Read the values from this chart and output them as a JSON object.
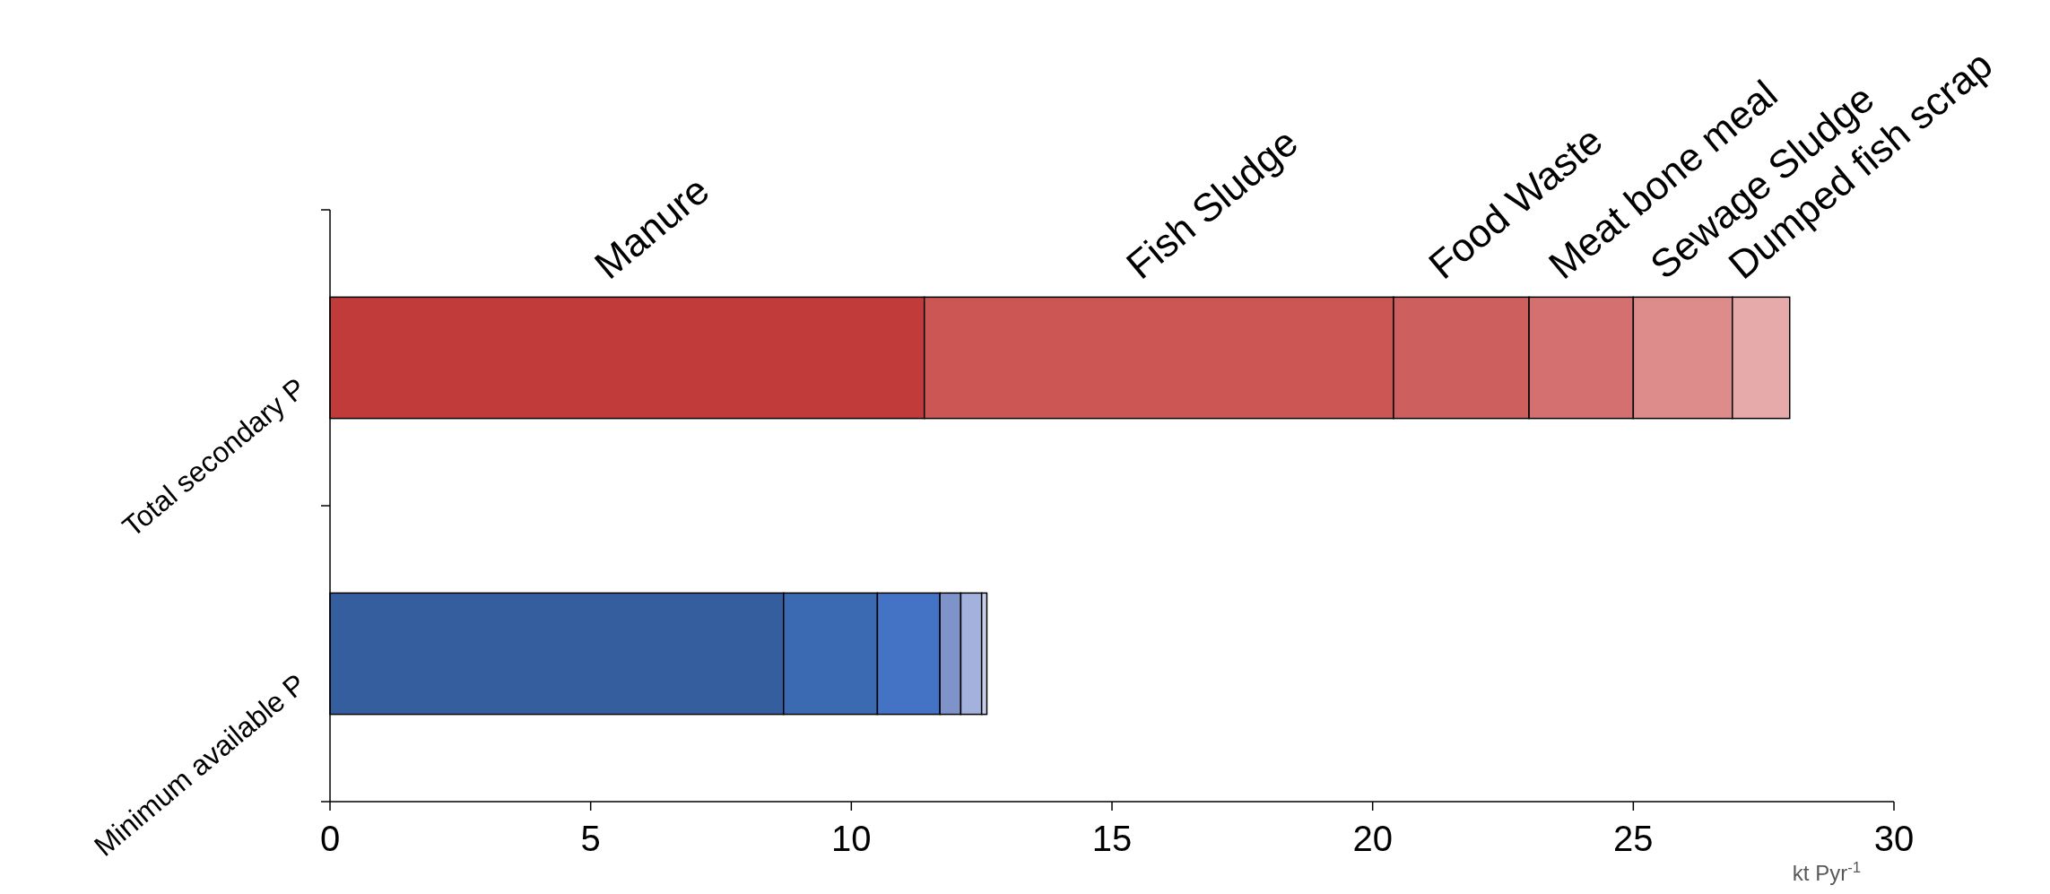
{
  "chart_data": {
    "type": "bar",
    "orientation": "horizontal",
    "stacked": true,
    "xlabel": "kt Pyr$^{-1}$",
    "categories": [
      "Total secondary P",
      "Minimum available P"
    ],
    "xlim": [
      0,
      30
    ],
    "xticks": [
      0,
      5,
      10,
      15,
      20,
      25,
      30
    ],
    "series": [
      {
        "name": "Manure",
        "color": "#c23b3b",
        "values": [
          11.4,
          null
        ]
      },
      {
        "name": "Fish Sludge",
        "color": "#cb5654",
        "values": [
          9.0,
          null
        ]
      },
      {
        "name": "Food Waste",
        "color": "#cd605e",
        "values": [
          2.6,
          null
        ]
      },
      {
        "name": "Meat bone meal",
        "color": "#d47170",
        "values": [
          2.0,
          null
        ]
      },
      {
        "name": "Sewage Sludge",
        "color": "#dd8c8b",
        "values": [
          1.9,
          null
        ]
      },
      {
        "name": "Dumped fish scrap",
        "color": "#e6aaaa",
        "values": [
          1.1,
          null
        ]
      },
      {
        "color": "#355e9f",
        "values": [
          null,
          8.7
        ]
      },
      {
        "color": "#3b69b2",
        "values": [
          null,
          1.8
        ]
      },
      {
        "color": "#4472c4",
        "values": [
          null,
          1.2
        ]
      },
      {
        "color": "#7f93cb",
        "values": [
          null,
          0.4
        ]
      },
      {
        "color": "#a3b2dc",
        "values": [
          null,
          0.4
        ]
      },
      {
        "color": "#c5cfe8",
        "values": [
          null,
          0.1
        ]
      }
    ]
  }
}
